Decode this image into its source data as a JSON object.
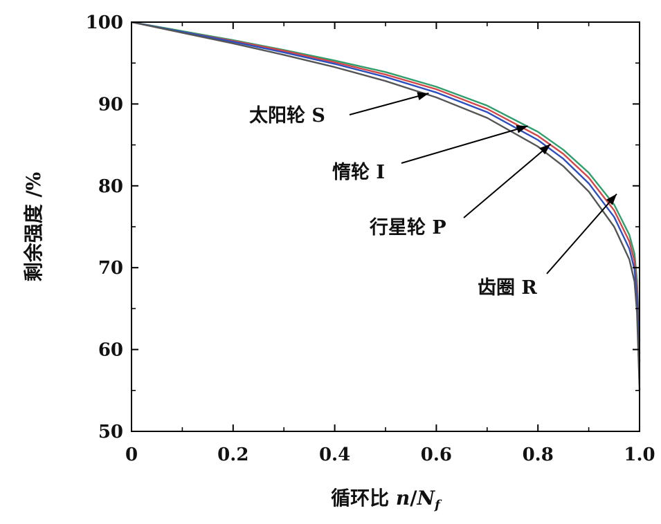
{
  "chart_data": {
    "type": "line",
    "xlabel": "循环比 n/N_f",
    "xlabel_parts": {
      "prefix": "循环比 ",
      "n": "n",
      "slash": "/",
      "N": "N",
      "sub": "f"
    },
    "ylabel": "剩余强度 /%",
    "xlim": [
      0,
      1.0
    ],
    "ylim": [
      50,
      100
    ],
    "x_ticks": [
      0,
      0.2,
      0.4,
      0.6,
      0.8,
      1.0
    ],
    "x_tick_labels": [
      "0",
      "0.2",
      "0.4",
      "0.6",
      "0.8",
      "1.0"
    ],
    "y_ticks": [
      50,
      60,
      70,
      80,
      90,
      100
    ],
    "y_tick_labels": [
      "50",
      "60",
      "70",
      "80",
      "90",
      "100"
    ],
    "grid": false,
    "x": [
      0,
      0.1,
      0.2,
      0.3,
      0.4,
      0.5,
      0.6,
      0.7,
      0.8,
      0.85,
      0.9,
      0.95,
      0.98,
      0.99,
      0.995,
      1.0
    ],
    "series": [
      {
        "color": "#2e9e6b",
        "values": [
          100,
          98.9,
          97.8,
          96.6,
          95.3,
          93.9,
          92.1,
          89.8,
          86.6,
          84.4,
          81.6,
          77.7,
          74.0,
          71.7,
          68.5,
          61
        ]
      },
      {
        "color": "#d64545",
        "values": [
          100,
          98.8,
          97.7,
          96.5,
          95.1,
          93.6,
          91.8,
          89.4,
          86.1,
          83.9,
          81.0,
          77.0,
          73.2,
          70.8,
          67.5,
          59.5
        ]
      },
      {
        "color": "#2b4fbf",
        "values": [
          100,
          98.8,
          97.6,
          96.3,
          94.9,
          93.3,
          91.4,
          89.0,
          85.6,
          83.3,
          80.3,
          76.2,
          72.3,
          69.8,
          66.5,
          58.5
        ]
      },
      {
        "color": "#555555",
        "values": [
          100,
          98.7,
          97.4,
          96.0,
          94.5,
          92.8,
          90.8,
          88.3,
          84.8,
          82.4,
          79.3,
          75.0,
          71.0,
          68.3,
          64.5,
          55
        ]
      }
    ],
    "annotations": [
      {
        "text": "太阳轮 S",
        "target": [
          0.585,
          91.3
        ]
      },
      {
        "text": "惰轮 I",
        "target": [
          0.78,
          87.3
        ]
      },
      {
        "text": "行星轮 P",
        "target": [
          0.825,
          85.1
        ]
      },
      {
        "text": "齿圈 R",
        "target": [
          0.955,
          79.0
        ]
      }
    ]
  }
}
